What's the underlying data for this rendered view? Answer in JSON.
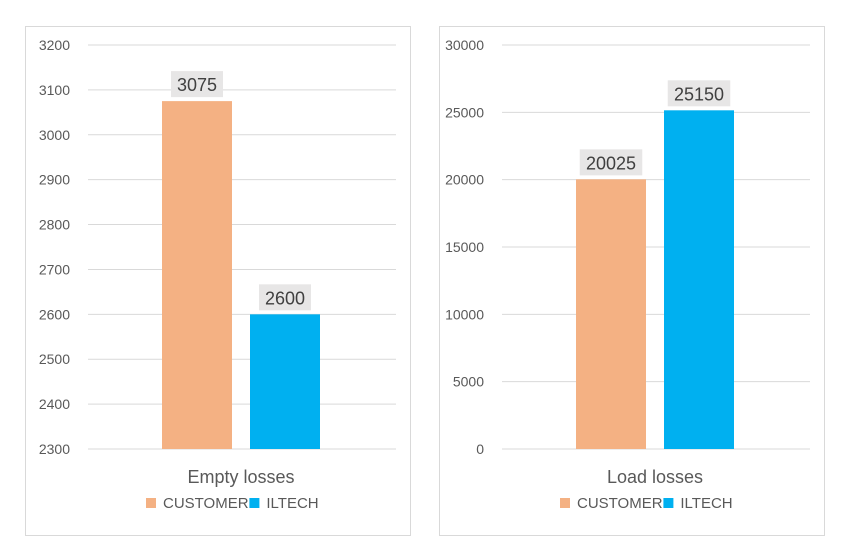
{
  "chart_data": [
    {
      "type": "bar",
      "title": "",
      "xlabel": "Empty losses",
      "ylabel": "",
      "categories": [
        "Empty losses"
      ],
      "series": [
        {
          "name": "CUSTOMER",
          "values": [
            3075
          ]
        },
        {
          "name": "ILTECH",
          "values": [
            2600
          ]
        }
      ],
      "ylim": [
        2300,
        3200
      ],
      "yticks": [
        2300,
        2400,
        2500,
        2600,
        2700,
        2800,
        2900,
        3000,
        3100,
        3200
      ],
      "data_labels": [
        "3075",
        "2600"
      ],
      "grid": true,
      "legend": "bottom"
    },
    {
      "type": "bar",
      "title": "",
      "xlabel": "Load losses",
      "ylabel": "",
      "categories": [
        "Load losses"
      ],
      "series": [
        {
          "name": "CUSTOMER",
          "values": [
            20025
          ]
        },
        {
          "name": "ILTECH",
          "values": [
            25150
          ]
        }
      ],
      "ylim": [
        0,
        30000
      ],
      "yticks": [
        0,
        5000,
        10000,
        15000,
        20000,
        25000,
        30000
      ],
      "data_labels": [
        "20025",
        "25150"
      ],
      "grid": true,
      "legend": "bottom"
    }
  ],
  "colors": {
    "CUSTOMER": "#f4b183",
    "ILTECH": "#00b0f0",
    "grid": "#d9d9d9",
    "axis_text": "#595959",
    "label_bg": "#e7e6e6"
  }
}
